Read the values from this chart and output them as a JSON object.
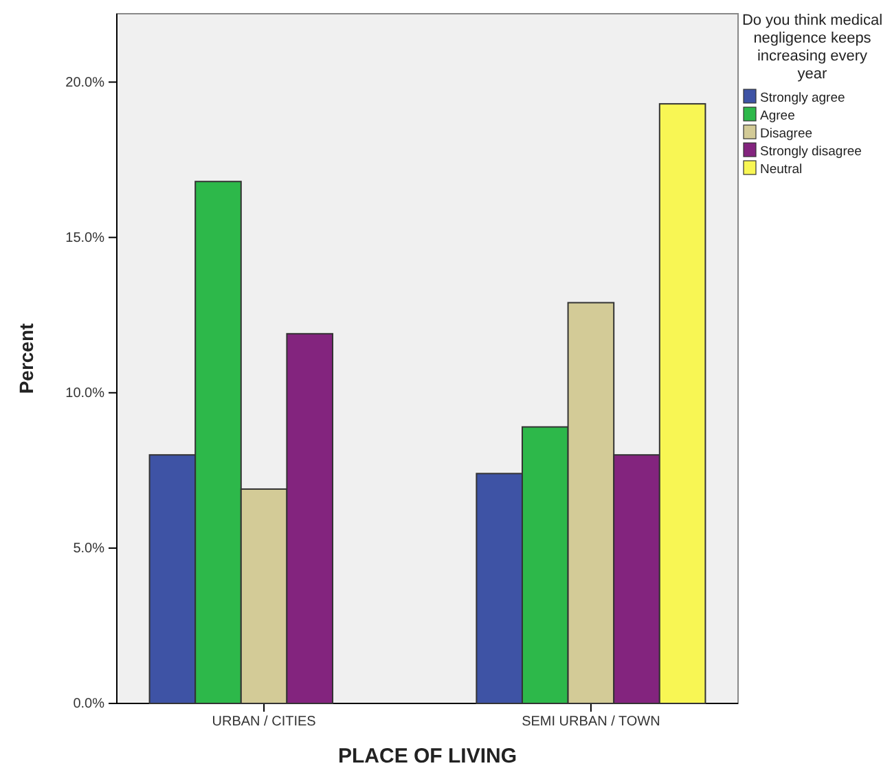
{
  "chart_data": {
    "type": "bar",
    "xlabel": "PLACE OF LIVING",
    "ylabel": "Percent",
    "legend_title": "Do you think medical negligence keeps increasing every year",
    "categories": [
      "URBAN / CITIES",
      "SEMI URBAN / TOWN"
    ],
    "series": [
      {
        "name": "Strongly agree",
        "color": "#3e53a5",
        "values": [
          8.0,
          7.4
        ]
      },
      {
        "name": "Agree",
        "color": "#2db84a",
        "values": [
          16.8,
          8.9
        ]
      },
      {
        "name": "Disagree",
        "color": "#d3cb97",
        "values": [
          6.9,
          12.9
        ]
      },
      {
        "name": "Strongly disagree",
        "color": "#83247e",
        "values": [
          11.9,
          8.0
        ]
      },
      {
        "name": "Neutral",
        "color": "#f8f654",
        "values": [
          null,
          19.3
        ]
      }
    ],
    "ylim": [
      0,
      22.2
    ],
    "yticks": [
      {
        "value": 0,
        "label": "0.0%"
      },
      {
        "value": 5,
        "label": "5.0%"
      },
      {
        "value": 10,
        "label": "10.0%"
      },
      {
        "value": 15,
        "label": "15.0%"
      },
      {
        "value": 20,
        "label": "20.0%"
      }
    ],
    "legend": "top right"
  }
}
